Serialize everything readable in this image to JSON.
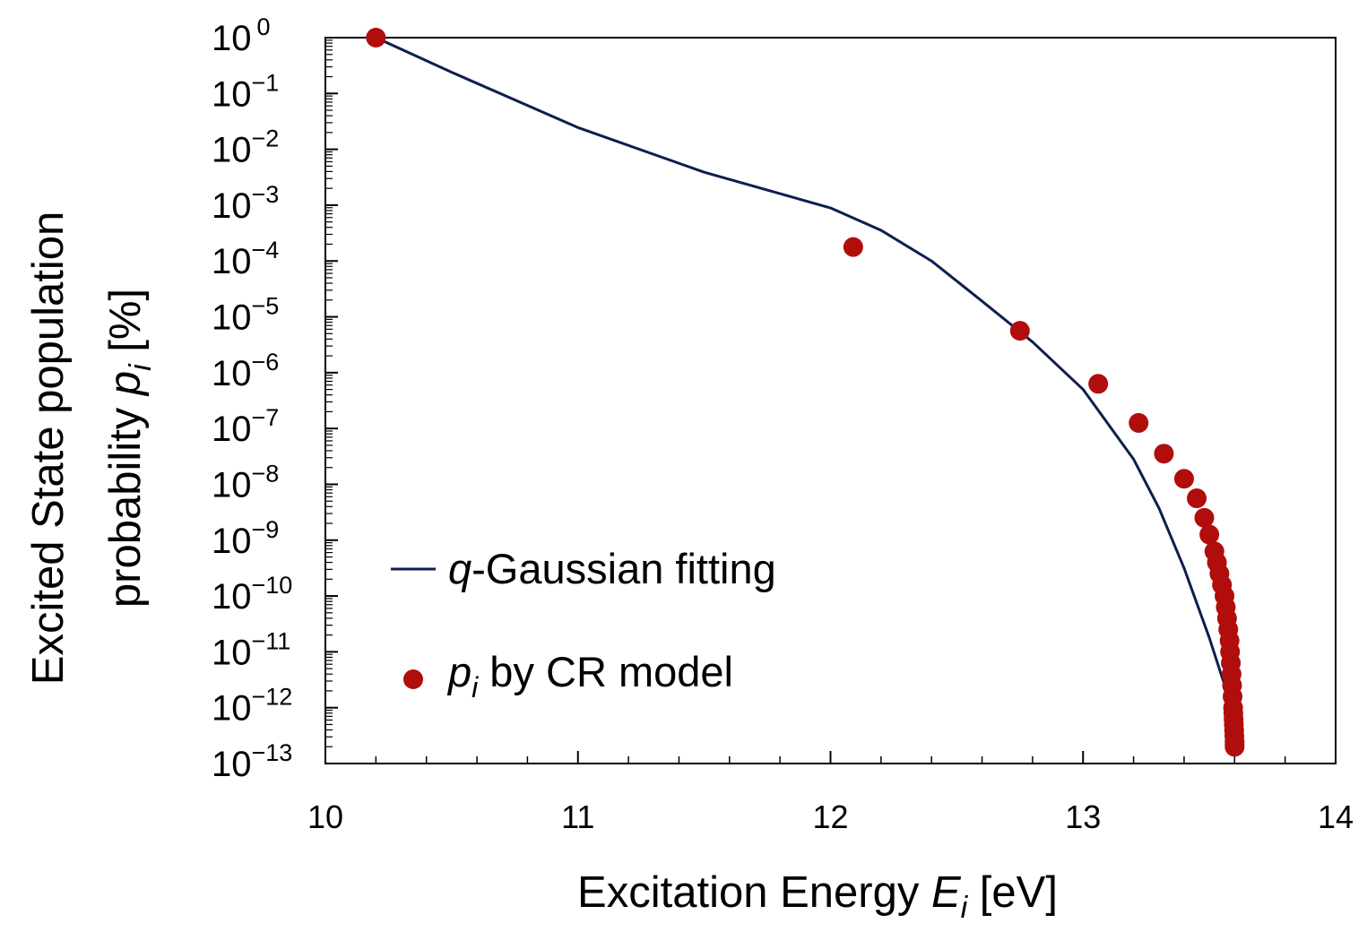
{
  "chart_data": {
    "type": "scatter",
    "title": "",
    "xlabel": {
      "prefix": "Excitation Energy ",
      "var": "E",
      "sub": "i",
      "suffix": " [eV]"
    },
    "ylabel": {
      "line1": "Excited State population",
      "line2_prefix": "probability ",
      "line2_var": "p",
      "line2_sub": "i",
      "line2_suffix": " [%]"
    },
    "xlim": [
      10,
      14
    ],
    "ylim_log10": [
      -13,
      0
    ],
    "y_scale": "log",
    "x_ticks": [
      "10",
      "11",
      "12",
      "13",
      "14"
    ],
    "y_ticks": [
      {
        "base": "10",
        "exp": "0"
      },
      {
        "base": "10",
        "exp": "−1"
      },
      {
        "base": "10",
        "exp": "−2"
      },
      {
        "base": "10",
        "exp": "−3"
      },
      {
        "base": "10",
        "exp": "−4"
      },
      {
        "base": "10",
        "exp": "−5"
      },
      {
        "base": "10",
        "exp": "−6"
      },
      {
        "base": "10",
        "exp": "−7"
      },
      {
        "base": "10",
        "exp": "−8"
      },
      {
        "base": "10",
        "exp": "−9"
      },
      {
        "base": "10",
        "exp": "−10"
      },
      {
        "base": "10",
        "exp": "−11"
      },
      {
        "base": "10",
        "exp": "−12"
      },
      {
        "base": "10",
        "exp": "−13"
      }
    ],
    "legend_position": "bottom-left",
    "series": [
      {
        "name": "q-Gaussian fitting",
        "legend": {
          "var": "q",
          "rest": "-Gaussian fitting"
        },
        "kind": "line",
        "color": "#0d1f4f",
        "x": [
          10.2,
          10.5,
          11.0,
          11.5,
          12.0,
          12.2,
          12.4,
          12.6,
          12.8,
          13.0,
          13.2,
          13.3,
          13.4,
          13.5,
          13.55,
          13.6
        ],
        "y_log10": [
          0.0,
          -0.62,
          -1.61,
          -2.41,
          -3.05,
          -3.45,
          -4.0,
          -4.72,
          -5.45,
          -6.3,
          -7.55,
          -8.42,
          -9.5,
          -10.75,
          -11.45,
          -12.1
        ]
      },
      {
        "name": "p_i by CR model",
        "legend": {
          "var": "p",
          "sub": "i",
          "rest": " by CR model"
        },
        "kind": "scatter",
        "color": "#b00d0d",
        "x": [
          10.2,
          12.09,
          12.75,
          13.06,
          13.22,
          13.32,
          13.4,
          13.45,
          13.48,
          13.5,
          13.52,
          13.53,
          13.54,
          13.55,
          13.56,
          13.565,
          13.57,
          13.575,
          13.58,
          13.582,
          13.585,
          13.588,
          13.59,
          13.592,
          13.594,
          13.595,
          13.596,
          13.597,
          13.598,
          13.599,
          13.6,
          13.6,
          13.6
        ],
        "y_log10": [
          0.0,
          -3.75,
          -5.25,
          -6.2,
          -6.9,
          -7.45,
          -7.9,
          -8.25,
          -8.6,
          -8.9,
          -9.2,
          -9.4,
          -9.6,
          -9.8,
          -10.0,
          -10.2,
          -10.4,
          -10.6,
          -10.8,
          -11.0,
          -11.2,
          -11.4,
          -11.6,
          -11.8,
          -12.0,
          -12.1,
          -12.2,
          -12.3,
          -12.4,
          -12.5,
          -12.6,
          -12.65,
          -12.7
        ]
      }
    ]
  }
}
